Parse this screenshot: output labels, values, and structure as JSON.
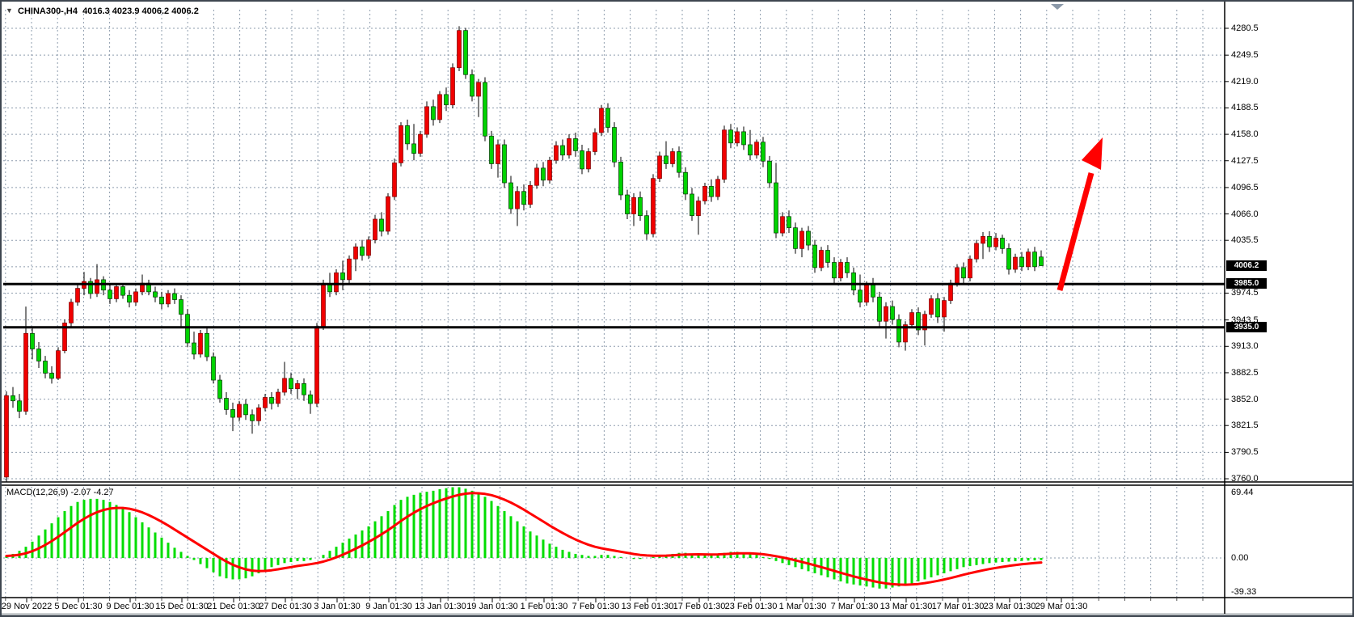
{
  "window": {
    "title_symbol": "CHINA300-,H4",
    "title_ohlc": "4016.3 4023.9 4006.2 4006.2",
    "dropdown_glyph": "▼"
  },
  "chart_data": {
    "type": "candlestick",
    "symbol": "CHINA300-",
    "timeframe": "H4",
    "title": "CHINA300-,H4  4016.3 4023.9 4006.2 4006.2",
    "ylim": [
      3760.0,
      4280.5
    ],
    "grid": true,
    "current_price": "4006.2",
    "horizontal_lines": [
      {
        "value": 3985.0,
        "label": "3985.0"
      },
      {
        "value": 3935.0,
        "label": "3935.0"
      }
    ],
    "price_axis_labels": [
      "4280.5",
      "4249.5",
      "4219.0",
      "4188.5",
      "4158.0",
      "4127.5",
      "4096.5",
      "4066.0",
      "4035.5",
      "3974.5",
      "3943.5",
      "3913.0",
      "3882.5",
      "3852.0",
      "3821.5",
      "3790.5",
      "3760.0"
    ],
    "hidden_gridline_price": 4005.0,
    "x_axis_dates": [
      "29 Nov 2022",
      "5 Dec 01:30",
      "9 Dec 01:30",
      "15 Dec 01:30",
      "21 Dec 01:30",
      "27 Dec 01:30",
      "3 Jan 01:30",
      "9 Jan 01:30",
      "13 Jan 01:30",
      "19 Jan 01:30",
      "1 Feb 01:30",
      "7 Feb 01:30",
      "13 Feb 01:30",
      "17 Feb 01:30",
      "23 Feb 01:30",
      "1 Mar 01:30",
      "7 Mar 01:30",
      "13 Mar 01:30",
      "17 Mar 01:30",
      "23 Mar 01:30",
      "29 Mar 01:30"
    ],
    "candles_ohlc": [
      [
        3762,
        3861,
        3756,
        3856
      ],
      [
        3856,
        3866,
        3842,
        3850
      ],
      [
        3850,
        3858,
        3830,
        3838
      ],
      [
        3838,
        3959,
        3834,
        3928
      ],
      [
        3928,
        3936,
        3898,
        3910
      ],
      [
        3910,
        3918,
        3888,
        3896
      ],
      [
        3896,
        3902,
        3876,
        3882
      ],
      [
        3882,
        3890,
        3870,
        3876
      ],
      [
        3876,
        3912,
        3874,
        3908
      ],
      [
        3908,
        3944,
        3905,
        3940
      ],
      [
        3940,
        3968,
        3936,
        3964
      ],
      [
        3964,
        3986,
        3960,
        3980
      ],
      [
        3980,
        3999,
        3972,
        3988
      ],
      [
        3988,
        3992,
        3968,
        3974
      ],
      [
        3974,
        4008,
        3970,
        3990
      ],
      [
        3990,
        3994,
        3972,
        3978
      ],
      [
        3978,
        3984,
        3962,
        3968
      ],
      [
        3968,
        3985,
        3964,
        3982
      ],
      [
        3982,
        3986,
        3968,
        3972
      ],
      [
        3972,
        3978,
        3958,
        3964
      ],
      [
        3964,
        3980,
        3960,
        3976
      ],
      [
        3976,
        3996,
        3972,
        3986
      ],
      [
        3986,
        3990,
        3972,
        3976
      ],
      [
        3976,
        3982,
        3964,
        3970
      ],
      [
        3970,
        3976,
        3956,
        3962
      ],
      [
        3962,
        3978,
        3958,
        3974
      ],
      [
        3974,
        3980,
        3962,
        3967
      ],
      [
        3967,
        3972,
        3936,
        3950
      ],
      [
        3950,
        3956,
        3912,
        3917
      ],
      [
        3917,
        3930,
        3898,
        3904
      ],
      [
        3904,
        3932,
        3900,
        3928
      ],
      [
        3928,
        3934,
        3896,
        3901
      ],
      [
        3901,
        3906,
        3870,
        3874
      ],
      [
        3874,
        3880,
        3848,
        3853
      ],
      [
        3853,
        3860,
        3834,
        3840
      ],
      [
        3840,
        3848,
        3815,
        3831
      ],
      [
        3831,
        3850,
        3826,
        3846
      ],
      [
        3846,
        3852,
        3828,
        3834
      ],
      [
        3834,
        3840,
        3812,
        3827
      ],
      [
        3827,
        3846,
        3822,
        3842
      ],
      [
        3842,
        3858,
        3838,
        3854
      ],
      [
        3854,
        3860,
        3840,
        3847
      ],
      [
        3847,
        3864,
        3843,
        3860
      ],
      [
        3860,
        3895,
        3856,
        3876
      ],
      [
        3876,
        3882,
        3858,
        3864
      ],
      [
        3864,
        3874,
        3852,
        3870
      ],
      [
        3870,
        3876,
        3850,
        3857
      ],
      [
        3857,
        3862,
        3835,
        3847
      ],
      [
        3847,
        3940,
        3843,
        3936
      ],
      [
        3936,
        3990,
        3932,
        3985
      ],
      [
        3985,
        3998,
        3970,
        3976
      ],
      [
        3976,
        4002,
        3972,
        3998
      ],
      [
        3998,
        4012,
        3978,
        3990
      ],
      [
        3990,
        4018,
        3986,
        4014
      ],
      [
        4014,
        4032,
        4000,
        4028
      ],
      [
        4028,
        4036,
        4012,
        4018
      ],
      [
        4018,
        4040,
        4014,
        4036
      ],
      [
        4036,
        4065,
        4032,
        4060
      ],
      [
        4060,
        4068,
        4040,
        4046
      ],
      [
        4046,
        4090,
        4042,
        4086
      ],
      [
        4086,
        4130,
        4082,
        4125
      ],
      [
        4125,
        4172,
        4121,
        4168
      ],
      [
        4168,
        4175,
        4140,
        4147
      ],
      [
        4147,
        4170,
        4128,
        4136
      ],
      [
        4136,
        4162,
        4132,
        4158
      ],
      [
        4158,
        4196,
        4154,
        4190
      ],
      [
        4190,
        4198,
        4168,
        4175
      ],
      [
        4175,
        4208,
        4171,
        4204
      ],
      [
        4204,
        4212,
        4185,
        4192
      ],
      [
        4192,
        4240,
        4188,
        4235
      ],
      [
        4235,
        4283,
        4231,
        4278
      ],
      [
        4278,
        4281,
        4222,
        4227
      ],
      [
        4227,
        4233,
        4196,
        4202
      ],
      [
        4202,
        4222,
        4178,
        4218
      ],
      [
        4218,
        4224,
        4150,
        4156
      ],
      [
        4156,
        4162,
        4118,
        4124
      ],
      [
        4124,
        4152,
        4108,
        4146
      ],
      [
        4146,
        4152,
        4096,
        4102
      ],
      [
        4102,
        4110,
        4066,
        4072
      ],
      [
        4072,
        4098,
        4052,
        4092
      ],
      [
        4092,
        4100,
        4070,
        4077
      ],
      [
        4077,
        4104,
        4073,
        4099
      ],
      [
        4099,
        4124,
        4095,
        4119
      ],
      [
        4119,
        4126,
        4098,
        4105
      ],
      [
        4105,
        4132,
        4101,
        4128
      ],
      [
        4128,
        4150,
        4124,
        4145
      ],
      [
        4145,
        4152,
        4128,
        4134
      ],
      [
        4134,
        4158,
        4130,
        4153
      ],
      [
        4153,
        4160,
        4132,
        4139
      ],
      [
        4139,
        4146,
        4112,
        4118
      ],
      [
        4118,
        4142,
        4114,
        4138
      ],
      [
        4138,
        4165,
        4134,
        4160
      ],
      [
        4160,
        4192,
        4156,
        4188
      ],
      [
        4188,
        4194,
        4160,
        4166
      ],
      [
        4166,
        4172,
        4120,
        4126
      ],
      [
        4126,
        4132,
        4082,
        4088
      ],
      [
        4088,
        4094,
        4060,
        4066
      ],
      [
        4066,
        4090,
        4052,
        4085
      ],
      [
        4085,
        4092,
        4058,
        4064
      ],
      [
        4064,
        4070,
        4036,
        4043
      ],
      [
        4043,
        4112,
        4039,
        4107
      ],
      [
        4107,
        4138,
        4103,
        4133
      ],
      [
        4133,
        4150,
        4118,
        4124
      ],
      [
        4124,
        4142,
        4120,
        4138
      ],
      [
        4138,
        4144,
        4108,
        4114
      ],
      [
        4114,
        4120,
        4082,
        4089
      ],
      [
        4089,
        4096,
        4058,
        4064
      ],
      [
        4064,
        4086,
        4042,
        4081
      ],
      [
        4081,
        4102,
        4077,
        4098
      ],
      [
        4098,
        4106,
        4080,
        4086
      ],
      [
        4086,
        4110,
        4082,
        4106
      ],
      [
        4106,
        4168,
        4102,
        4163
      ],
      [
        4163,
        4170,
        4142,
        4148
      ],
      [
        4148,
        4166,
        4144,
        4161
      ],
      [
        4161,
        4167,
        4140,
        4146
      ],
      [
        4146,
        4163,
        4128,
        4134
      ],
      [
        4134,
        4152,
        4130,
        4149
      ],
      [
        4149,
        4155,
        4120,
        4127
      ],
      [
        4127,
        4133,
        4096,
        4102
      ],
      [
        4102,
        4125,
        4038,
        4044
      ],
      [
        4044,
        4068,
        4040,
        4063
      ],
      [
        4063,
        4070,
        4044,
        4050
      ],
      [
        4050,
        4056,
        4020,
        4026
      ],
      [
        4026,
        4050,
        4016,
        4046
      ],
      [
        4046,
        4052,
        4024,
        4030
      ],
      [
        4030,
        4036,
        3998,
        4004
      ],
      [
        4004,
        4028,
        4000,
        4024
      ],
      [
        4024,
        4030,
        4004,
        4010
      ],
      [
        4010,
        4016,
        3986,
        3992
      ],
      [
        3992,
        4014,
        3988,
        4010
      ],
      [
        4010,
        4016,
        3992,
        3998
      ],
      [
        3998,
        4004,
        3972,
        3978
      ],
      [
        3978,
        3996,
        3958,
        3964
      ],
      [
        3964,
        3988,
        3960,
        3984
      ],
      [
        3984,
        3992,
        3964,
        3970
      ],
      [
        3970,
        3976,
        3936,
        3942
      ],
      [
        3942,
        3964,
        3922,
        3959
      ],
      [
        3959,
        3966,
        3938,
        3944
      ],
      [
        3944,
        3950,
        3912,
        3918
      ],
      [
        3918,
        3942,
        3908,
        3938
      ],
      [
        3938,
        3956,
        3934,
        3952
      ],
      [
        3952,
        3958,
        3926,
        3932
      ],
      [
        3932,
        3954,
        3914,
        3950
      ],
      [
        3950,
        3972,
        3946,
        3968
      ],
      [
        3968,
        3974,
        3940,
        3947
      ],
      [
        3947,
        3970,
        3930,
        3966
      ],
      [
        3966,
        3990,
        3962,
        3986
      ],
      [
        3986,
        4008,
        3982,
        4004
      ],
      [
        4004,
        4010,
        3986,
        3992
      ],
      [
        3992,
        4018,
        3988,
        4014
      ],
      [
        4014,
        4036,
        4010,
        4032
      ],
      [
        4032,
        4045,
        4014,
        4040
      ],
      [
        4040,
        4046,
        4022,
        4028
      ],
      [
        4028,
        4044,
        4024,
        4038
      ],
      [
        4038,
        4042,
        4020,
        4026
      ],
      [
        4026,
        4032,
        3996,
        4002
      ],
      [
        4002,
        4020,
        3998,
        4016
      ],
      [
        4016,
        4022,
        4000,
        4005
      ],
      [
        4005,
        4026,
        4001,
        4022
      ],
      [
        4022,
        4028,
        4000,
        4005
      ],
      [
        4016.3,
        4023.9,
        4006.2,
        4006.2
      ]
    ],
    "macd": {
      "label": "MACD(12,26,9) -2.07 -4.27",
      "settings": "12,26,9",
      "macd_value": -2.07,
      "signal_value": -4.27,
      "axis_labels": [
        "69.44",
        "0.00",
        "-39.33"
      ],
      "histogram": [
        2,
        4,
        7,
        11,
        16,
        22,
        28,
        34,
        40,
        46,
        51,
        55,
        57,
        58,
        58,
        57,
        55,
        52,
        49,
        45,
        40,
        35,
        30,
        25,
        20,
        15,
        10,
        6,
        2,
        -2,
        -6,
        -10,
        -14,
        -18,
        -20,
        -21,
        -21,
        -20,
        -18,
        -15,
        -12,
        -9,
        -7,
        -5,
        -4,
        -3,
        -3,
        -2,
        0,
        3,
        7,
        11,
        15,
        19,
        23,
        27,
        31,
        36,
        41,
        46,
        52,
        57,
        60,
        62,
        64,
        65,
        66,
        67.5,
        68.5,
        69.4,
        69.4,
        68,
        66,
        63,
        60,
        56,
        51,
        46,
        41,
        36,
        31,
        26,
        22,
        18,
        14,
        11,
        8,
        6,
        4,
        3,
        2,
        2,
        3,
        3,
        2,
        1,
        0,
        -1,
        -1,
        0,
        1,
        2,
        3,
        4,
        5,
        5,
        4,
        4,
        3,
        3,
        4,
        5,
        6,
        6,
        5,
        4,
        3,
        1,
        -1,
        -3,
        -5,
        -7,
        -9,
        -11,
        -13,
        -15,
        -17,
        -19,
        -21,
        -23,
        -25,
        -26,
        -27,
        -28,
        -29,
        -30,
        -30,
        -29,
        -28,
        -27,
        -25,
        -23,
        -21,
        -19,
        -17,
        -15,
        -13,
        -11,
        -9,
        -8,
        -7,
        -6,
        -5,
        -4.5,
        -4,
        -3.6,
        -3.2,
        -2.9,
        -2.6,
        -2.3,
        -2.07
      ]
    },
    "annotations": {
      "arrow": {
        "color": "#ff0000",
        "direction": "up-right"
      }
    },
    "colors": {
      "bull_candle": "#f00000",
      "bear_candle": "#00d300",
      "wick": "#000000",
      "grid": "#8e9cad",
      "signal_line": "#ff0000",
      "histogram": "#00dd00",
      "level_line": "#000000",
      "badge_bg": "#000000",
      "badge_text": "#ffffff",
      "shift_marker": "#8a98a8"
    }
  }
}
